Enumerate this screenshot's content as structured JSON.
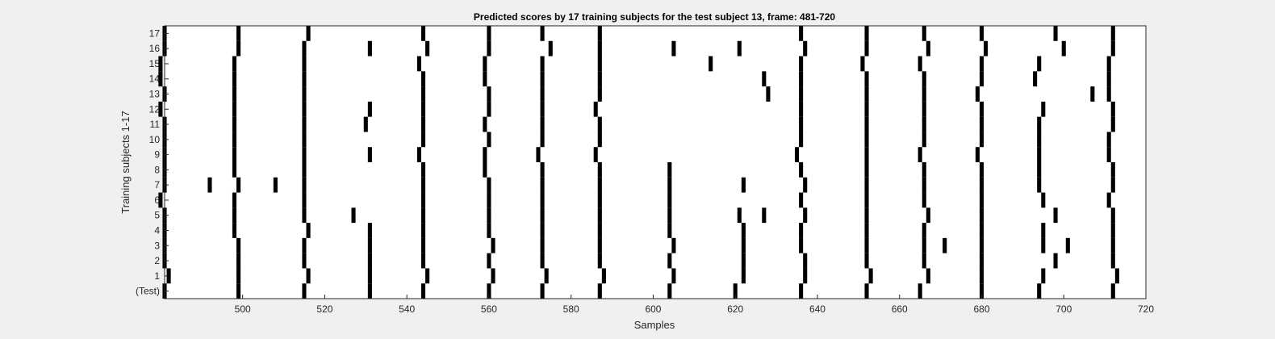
{
  "chart_data": {
    "type": "heatmap",
    "title": "Predicted scores by 17 training subjects for the test subject 13, frame: 481-720",
    "xlabel": "Samples",
    "ylabel": "Training subjects 1-17",
    "xlim": [
      481,
      720
    ],
    "x_ticks": [
      500,
      520,
      540,
      560,
      580,
      600,
      620,
      640,
      660,
      680,
      700,
      720
    ],
    "row_labels": [
      "(Test)",
      "1",
      "2",
      "3",
      "4",
      "5",
      "6",
      "7",
      "8",
      "9",
      "10",
      "11",
      "12",
      "13",
      "14",
      "15",
      "16",
      "17"
    ],
    "grid": false,
    "mark_color": "#000000",
    "background_color": "#ffffff",
    "rows": [
      {
        "label": "(Test)",
        "marks": [
          481,
          499,
          515,
          531,
          544,
          560,
          573,
          587,
          604,
          620,
          636,
          652,
          665,
          680,
          694,
          712
        ]
      },
      {
        "label": "1",
        "marks": [
          482,
          499,
          516,
          531,
          545,
          561,
          574,
          588,
          605,
          622,
          637,
          653,
          667,
          680,
          695,
          713
        ]
      },
      {
        "label": "2",
        "marks": [
          481,
          499,
          515,
          531,
          544,
          560,
          573,
          587,
          604,
          622,
          637,
          652,
          666,
          680,
          698,
          712
        ]
      },
      {
        "label": "3",
        "marks": [
          481,
          499,
          515,
          531,
          544,
          561,
          573,
          587,
          605,
          622,
          636,
          652,
          666,
          671,
          680,
          695,
          701,
          712
        ]
      },
      {
        "label": "4",
        "marks": [
          481,
          498,
          516,
          531,
          544,
          560,
          573,
          587,
          604,
          622,
          636,
          652,
          666,
          680,
          695,
          712
        ]
      },
      {
        "label": "5",
        "marks": [
          481,
          498,
          515,
          527,
          544,
          560,
          573,
          587,
          604,
          621,
          627,
          637,
          652,
          667,
          680,
          698,
          712
        ]
      },
      {
        "label": "6",
        "marks": [
          480,
          498,
          515,
          544,
          560,
          573,
          587,
          604,
          636,
          652,
          666,
          680,
          695,
          711
        ]
      },
      {
        "label": "7",
        "marks": [
          481,
          492,
          499,
          508,
          515,
          544,
          560,
          573,
          587,
          604,
          622,
          637,
          652,
          666,
          680,
          694,
          712
        ]
      },
      {
        "label": "8",
        "marks": [
          481,
          498,
          515,
          544,
          559,
          573,
          587,
          604,
          636,
          652,
          666,
          680,
          694,
          712
        ]
      },
      {
        "label": "9",
        "marks": [
          481,
          498,
          515,
          531,
          543,
          559,
          572,
          586,
          635,
          652,
          665,
          679,
          694,
          711
        ]
      },
      {
        "label": "10",
        "marks": [
          481,
          498,
          515,
          544,
          560,
          573,
          587,
          636,
          652,
          666,
          680,
          694,
          711
        ]
      },
      {
        "label": "11",
        "marks": [
          481,
          498,
          515,
          530,
          544,
          559,
          573,
          587,
          636,
          652,
          666,
          680,
          694,
          712
        ]
      },
      {
        "label": "12",
        "marks": [
          480,
          498,
          515,
          531,
          544,
          560,
          573,
          586,
          636,
          652,
          666,
          680,
          695,
          712
        ]
      },
      {
        "label": "13",
        "marks": [
          481,
          498,
          515,
          544,
          560,
          573,
          587,
          628,
          636,
          652,
          666,
          679,
          707,
          711
        ]
      },
      {
        "label": "14",
        "marks": [
          480,
          498,
          515,
          544,
          559,
          573,
          587,
          627,
          636,
          652,
          666,
          680,
          693,
          711
        ]
      },
      {
        "label": "15",
        "marks": [
          480,
          498,
          515,
          543,
          559,
          573,
          587,
          614,
          636,
          651,
          665,
          680,
          694,
          711
        ]
      },
      {
        "label": "16",
        "marks": [
          481,
          499,
          515,
          531,
          545,
          560,
          575,
          587,
          605,
          621,
          637,
          652,
          667,
          681,
          700,
          712
        ]
      },
      {
        "label": "17",
        "marks": [
          481,
          499,
          516,
          544,
          560,
          573,
          587,
          636,
          652,
          666,
          680,
          698,
          712
        ]
      }
    ]
  }
}
